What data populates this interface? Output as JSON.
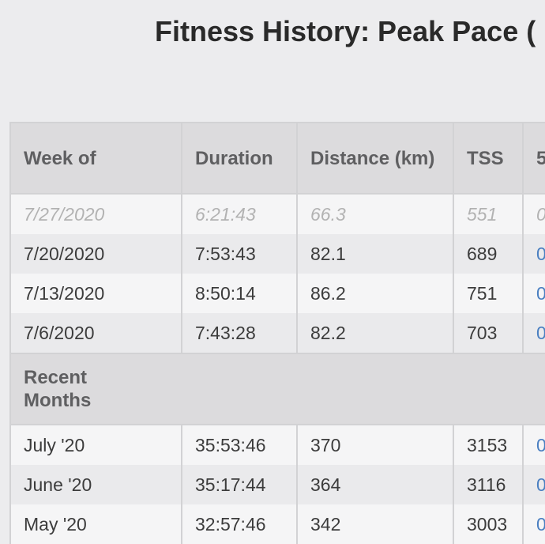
{
  "page": {
    "title": "Fitness History: Peak Pace ("
  },
  "table": {
    "headers": [
      "Week of",
      "Duration",
      "Distance (km)",
      "TSS",
      "5"
    ],
    "weeks": [
      {
        "week": "7/27/2020",
        "duration": "6:21:43",
        "distance": "66.3",
        "tss": "551",
        "extra": "0"
      },
      {
        "week": "7/20/2020",
        "duration": "7:53:43",
        "distance": "82.1",
        "tss": "689",
        "extra": "0"
      },
      {
        "week": "7/13/2020",
        "duration": "8:50:14",
        "distance": "86.2",
        "tss": "751",
        "extra": "0"
      },
      {
        "week": "7/6/2020",
        "duration": "7:43:28",
        "distance": "82.2",
        "tss": "703",
        "extra": "0"
      }
    ],
    "section_label": "Recent Months",
    "months": [
      {
        "month": "July '20",
        "duration": "35:53:46",
        "distance": "370",
        "tss": "3153",
        "extra": "0"
      },
      {
        "month": "June '20",
        "duration": "35:17:44",
        "distance": "364",
        "tss": "3116",
        "extra": "0"
      },
      {
        "month": "May '20",
        "duration": "32:57:46",
        "distance": "342",
        "tss": "3003",
        "extra": "0"
      }
    ]
  },
  "colors": {
    "background": "#ececee",
    "header_bg": "#dcdbdd",
    "row_light": "#f5f5f6",
    "row_dark": "#eaeaec",
    "link": "#4a7fc1",
    "current_week_text": "#b2b2b2"
  }
}
